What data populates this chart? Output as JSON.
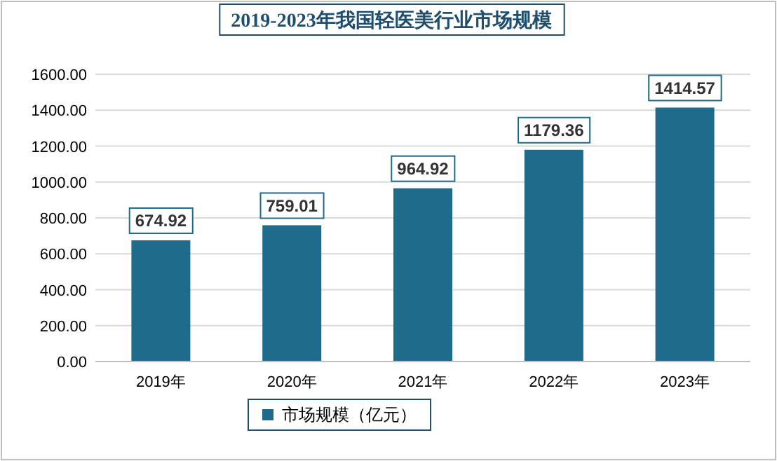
{
  "chart_data": {
    "type": "bar",
    "title": "2019-2023年我国轻医美行业市场规模",
    "categories": [
      "2019年",
      "2020年",
      "2021年",
      "2022年",
      "2023年"
    ],
    "series": [
      {
        "name": "市场规模（亿元）",
        "color": "#1f6b8c",
        "values": [
          674.92,
          759.01,
          964.92,
          1179.36,
          1414.57
        ]
      }
    ],
    "ylim": [
      0,
      1600
    ],
    "yticks": [
      {
        "value": 0,
        "label": "0.00"
      },
      {
        "value": 200,
        "label": "200.00"
      },
      {
        "value": 400,
        "label": "400.00"
      },
      {
        "value": 600,
        "label": "600.00"
      },
      {
        "value": 800,
        "label": "800.00"
      },
      {
        "value": 1000,
        "label": "1000.00"
      },
      {
        "value": 1200,
        "label": "1200.00"
      },
      {
        "value": 1400,
        "label": "1400.00"
      },
      {
        "value": 1600,
        "label": "1600.00"
      }
    ],
    "grid": "y",
    "legend": "bottom",
    "data_labels": true
  }
}
